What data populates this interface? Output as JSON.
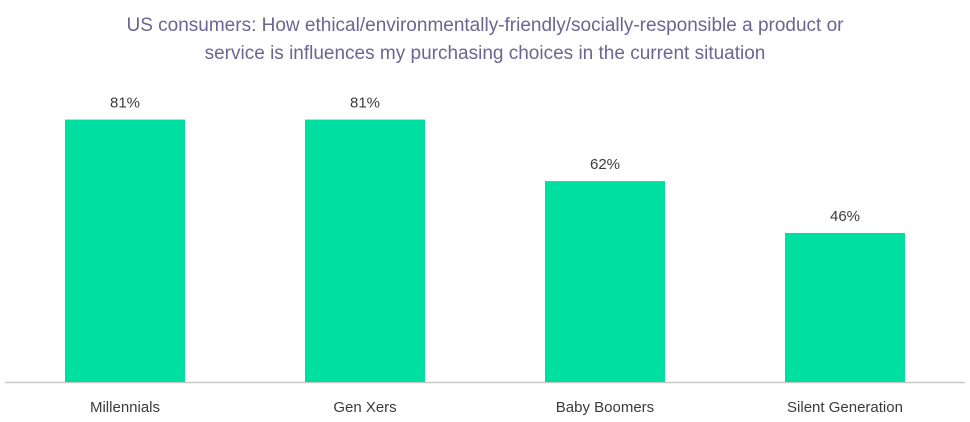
{
  "chart_data": {
    "type": "bar",
    "title_lines": [
      "US consumers: How ethical/environmentally-friendly/socially-responsible a product or",
      "service is influences my purchasing choices in the current situation"
    ],
    "categories": [
      "Millennials",
      "Gen Xers",
      "Baby Boomers",
      "Silent Generation"
    ],
    "values": [
      81,
      81,
      62,
      46
    ],
    "value_labels": [
      "81%",
      "81%",
      "62%",
      "46%"
    ],
    "ylim": [
      0,
      100
    ],
    "grid": false,
    "legend": "none",
    "bar_color": "#00dfa2",
    "axis_color": "#c8c8c8",
    "label_color": "#3b3b3b",
    "title_color": "#6b6593"
  }
}
